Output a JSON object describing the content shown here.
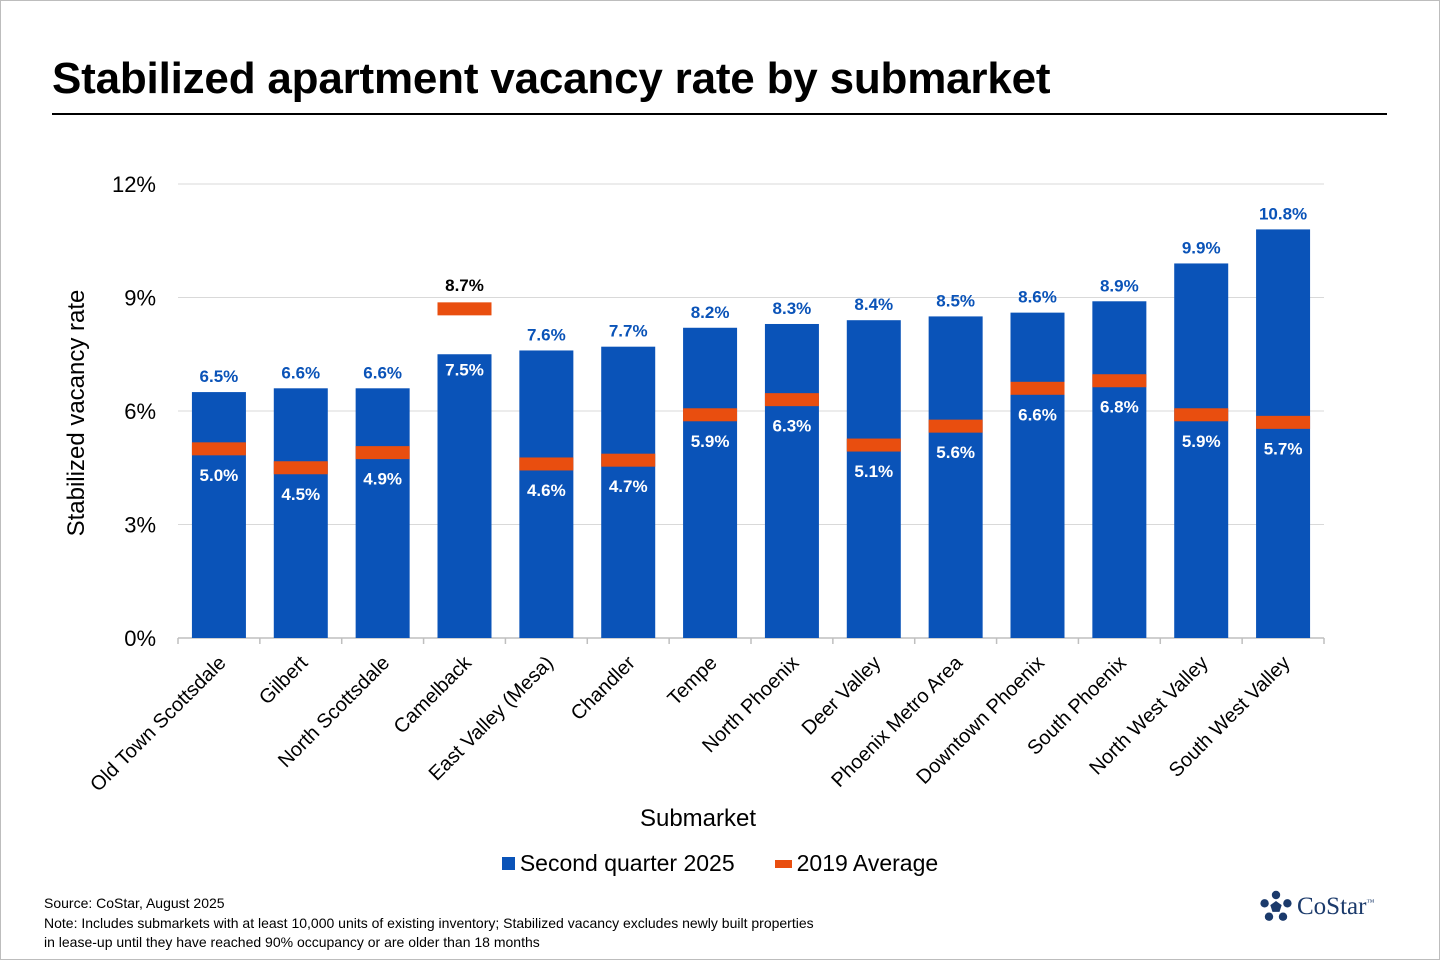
{
  "title": "Stabilized apartment vacancy rate by submarket",
  "colors": {
    "bar": "#0a53b8",
    "marker": "#e94e0f",
    "label_outside": "#0a53b8",
    "label_inside": "#ffffff",
    "grid": "#d9d9d9"
  },
  "chart_data": {
    "type": "bar",
    "title": "Stabilized apartment vacancy rate by submarket",
    "xlabel": "Submarket",
    "ylabel": "Stabilized vacancy rate",
    "ylim": [
      0,
      12
    ],
    "yticks": [
      0,
      3,
      6,
      9,
      12
    ],
    "ytick_labels": [
      "0%",
      "3%",
      "6%",
      "9%",
      "12%"
    ],
    "grid": true,
    "legend_position": "bottom-center",
    "categories": [
      "Old Town Scottsdale",
      "Gilbert",
      "North Scottsdale",
      "Camelback",
      "East Valley (Mesa)",
      "Chandler",
      "Tempe",
      "North Phoenix",
      "Deer Valley",
      "Phoenix Metro Area",
      "Downtown Phoenix",
      "South Phoenix",
      "North West Valley",
      "South West Valley"
    ],
    "series": [
      {
        "name": "Second quarter 2025",
        "kind": "bar",
        "values": [
          6.5,
          6.6,
          6.6,
          7.5,
          7.6,
          7.7,
          8.2,
          8.3,
          8.4,
          8.5,
          8.6,
          8.9,
          9.9,
          10.8
        ],
        "labels": [
          "6.5%",
          "6.6%",
          "6.6%",
          "7.5%",
          "7.6%",
          "7.7%",
          "8.2%",
          "8.3%",
          "8.4%",
          "8.5%",
          "8.6%",
          "8.9%",
          "9.9%",
          "10.8%"
        ],
        "label_inside": [
          false,
          false,
          false,
          true,
          false,
          false,
          false,
          false,
          false,
          false,
          false,
          false,
          false,
          false
        ]
      },
      {
        "name": "2019 Average",
        "kind": "marker",
        "values": [
          5.0,
          4.5,
          4.9,
          8.7,
          4.6,
          4.7,
          5.9,
          6.3,
          5.1,
          5.6,
          6.6,
          6.8,
          5.9,
          5.7
        ],
        "labels": [
          "5.0%",
          "4.5%",
          "4.9%",
          "8.7%",
          "4.6%",
          "4.7%",
          "5.9%",
          "6.3%",
          "5.1%",
          "5.6%",
          "6.6%",
          "6.8%",
          "5.9%",
          "5.7%"
        ],
        "label_above": [
          false,
          false,
          false,
          true,
          false,
          false,
          false,
          false,
          false,
          false,
          false,
          false,
          false,
          false
        ]
      }
    ]
  },
  "legend": {
    "bar_label": "Second quarter 2025",
    "marker_label": "2019 Average"
  },
  "footnote": {
    "source": "Source: CoStar, August 2025",
    "note_line1": "Note: Includes submarkets with at least 10,000 units of existing inventory; Stabilized vacancy excludes newly built properties",
    "note_line2": "in lease-up until they have reached 90% occupancy or are older than 18 months"
  },
  "logo": {
    "text": "CoStar",
    "tm": "™"
  }
}
